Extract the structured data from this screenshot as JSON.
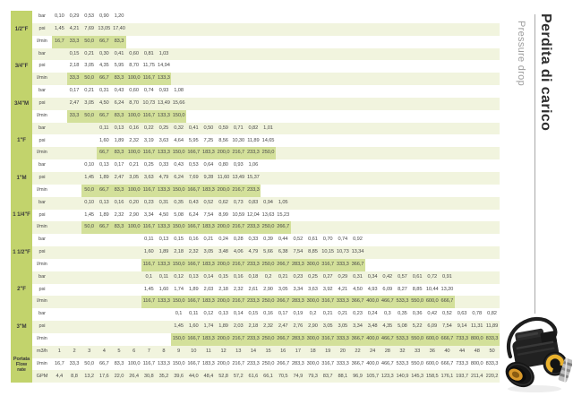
{
  "title": {
    "it": "Perdita di carico",
    "en": "Pressure drop"
  },
  "table": {
    "columns": 30,
    "units": {
      "bar": "bar",
      "psi": "psi",
      "lmin": "l/min",
      "m3h": "m3/h",
      "gpm": "GPM"
    },
    "groups": [
      {
        "size": "1/2\"F",
        "start": 1,
        "bar": [
          "0,10",
          "0,29",
          "0,53",
          "0,90",
          "1,20"
        ],
        "psi": [
          "1,45",
          "4,21",
          "7,69",
          "13,05",
          "17,40"
        ],
        "lmin": [
          "16,7",
          "33,3",
          "50,0",
          "66,7",
          "83,3"
        ]
      },
      {
        "size": "3/4\"F",
        "start": 2,
        "bar": [
          "0,15",
          "0,21",
          "0,30",
          "0,41",
          "0,60",
          "0,81",
          "1,03"
        ],
        "psi": [
          "2,18",
          "3,05",
          "4,35",
          "5,95",
          "8,70",
          "11,75",
          "14,94"
        ],
        "lmin": [
          "33,3",
          "50,0",
          "66,7",
          "83,3",
          "100,0",
          "116,7",
          "133,3"
        ]
      },
      {
        "size": "3/4\"M",
        "start": 2,
        "bar": [
          "0,17",
          "0,21",
          "0,31",
          "0,43",
          "0,60",
          "0,74",
          "0,93",
          "1,08"
        ],
        "psi": [
          "2,47",
          "3,05",
          "4,50",
          "6,24",
          "8,70",
          "10,73",
          "13,49",
          "15,66"
        ],
        "lmin": [
          "33,3",
          "50,0",
          "66,7",
          "83,3",
          "100,0",
          "116,7",
          "133,3",
          "150,0"
        ]
      },
      {
        "size": "1\"F",
        "start": 4,
        "bar": [
          "0,11",
          "0,13",
          "0,16",
          "0,22",
          "0,25",
          "0,32",
          "0,41",
          "0,50",
          "0,59",
          "0,71",
          "0,82",
          "1,01"
        ],
        "psi": [
          "1,60",
          "1,89",
          "2,32",
          "3,19",
          "3,63",
          "4,64",
          "5,95",
          "7,25",
          "8,56",
          "10,30",
          "11,89",
          "14,65"
        ],
        "lmin": [
          "66,7",
          "83,3",
          "100,0",
          "116,7",
          "133,3",
          "150,0",
          "166,7",
          "183,3",
          "200,0",
          "216,7",
          "233,3",
          "250,0"
        ]
      },
      {
        "size": "1\"M",
        "start": 3,
        "bar": [
          "0,10",
          "0,13",
          "0,17",
          "0,21",
          "0,25",
          "0,33",
          "0,43",
          "0,53",
          "0,64",
          "0,80",
          "0,93",
          "1,06"
        ],
        "psi": [
          "1,45",
          "1,89",
          "2,47",
          "3,05",
          "3,63",
          "4,79",
          "6,24",
          "7,69",
          "9,28",
          "11,60",
          "13,49",
          "15,37"
        ],
        "lmin": [
          "50,0",
          "66,7",
          "83,3",
          "100,0",
          "116,7",
          "133,3",
          "150,0",
          "166,7",
          "183,3",
          "200,0",
          "216,7",
          "233,3"
        ]
      },
      {
        "size": "1 1/4\"F",
        "start": 3,
        "bar": [
          "0,10",
          "0,13",
          "0,16",
          "0,20",
          "0,23",
          "0,31",
          "0,35",
          "0,43",
          "0,52",
          "0,62",
          "0,73",
          "0,83",
          "0,94",
          "1,05"
        ],
        "psi": [
          "1,45",
          "1,89",
          "2,32",
          "2,90",
          "3,34",
          "4,50",
          "5,08",
          "6,24",
          "7,54",
          "8,99",
          "10,59",
          "12,04",
          "13,63",
          "15,23"
        ],
        "lmin": [
          "50,0",
          "66,7",
          "83,3",
          "100,0",
          "116,7",
          "133,3",
          "150,0",
          "166,7",
          "183,3",
          "200,0",
          "216,7",
          "233,3",
          "250,0",
          "266,7"
        ]
      },
      {
        "size": "1 1/2\"F",
        "start": 7,
        "bar": [
          "0,11",
          "0,13",
          "0,15",
          "0,16",
          "0,21",
          "0,24",
          "0,28",
          "0,33",
          "0,39",
          "0,44",
          "0,52",
          "0,61",
          "0,70",
          "0,74",
          "0,92"
        ],
        "psi": [
          "1,60",
          "1,89",
          "2,18",
          "2,32",
          "3,05",
          "3,48",
          "4,06",
          "4,79",
          "5,66",
          "6,38",
          "7,54",
          "8,85",
          "10,15",
          "10,73",
          "13,34"
        ],
        "lmin": [
          "116,7",
          "133,3",
          "150,0",
          "166,7",
          "183,3",
          "200,0",
          "216,7",
          "233,3",
          "250,0",
          "266,7",
          "283,3",
          "300,0",
          "316,7",
          "333,3",
          "366,7"
        ]
      },
      {
        "size": "2\"F",
        "start": 7,
        "bar": [
          "0,1",
          "0,11",
          "0,12",
          "0,13",
          "0,14",
          "0,15",
          "0,16",
          "0,18",
          "0,2",
          "0,21",
          "0,23",
          "0,25",
          "0,27",
          "0,29",
          "0,31",
          "0,34",
          "0,42",
          "0,57",
          "0,61",
          "0,72",
          "0,91"
        ],
        "psi": [
          "1,45",
          "1,60",
          "1,74",
          "1,89",
          "2,03",
          "2,18",
          "2,32",
          "2,61",
          "2,90",
          "3,05",
          "3,34",
          "3,63",
          "3,92",
          "4,21",
          "4,50",
          "4,93",
          "6,09",
          "8,27",
          "8,85",
          "10,44",
          "13,20"
        ],
        "lmin": [
          "116,7",
          "133,3",
          "150,0",
          "166,7",
          "183,3",
          "200,0",
          "216,7",
          "233,3",
          "250,0",
          "266,7",
          "283,3",
          "300,0",
          "316,7",
          "333,3",
          "366,7",
          "400,0",
          "466,7",
          "533,3",
          "550,0",
          "600,0",
          "666,7"
        ]
      },
      {
        "size": "3\"M",
        "start": 9,
        "bar": [
          "0,1",
          "0,11",
          "0,12",
          "0,13",
          "0,14",
          "0,15",
          "0,16",
          "0,17",
          "0,19",
          "0,2",
          "0,21",
          "0,21",
          "0,23",
          "0,24",
          "0,3",
          "0,35",
          "0,36",
          "0,42",
          "0,52",
          "0,63",
          "0,78",
          "0,82"
        ],
        "psi": [
          "1,45",
          "1,60",
          "1,74",
          "1,89",
          "2,03",
          "2,18",
          "2,32",
          "2,47",
          "2,76",
          "2,90",
          "3,05",
          "3,05",
          "3,34",
          "3,48",
          "4,35",
          "5,08",
          "5,22",
          "6,09",
          "7,54",
          "9,14",
          "11,31",
          "11,89"
        ],
        "lmin": [
          "150,0",
          "166,7",
          "183,3",
          "200,0",
          "216,7",
          "233,3",
          "250,0",
          "266,7",
          "283,3",
          "300,0",
          "316,7",
          "333,3",
          "366,7",
          "400,0",
          "466,7",
          "533,3",
          "550,0",
          "600,0",
          "666,7",
          "733,3",
          "800,0",
          "833,3"
        ]
      }
    ],
    "flow": {
      "label_lines": [
        "Portata",
        "Flow",
        "rate"
      ],
      "m3h": [
        "1",
        "2",
        "3",
        "4",
        "5",
        "6",
        "7",
        "8",
        "9",
        "10",
        "11",
        "12",
        "13",
        "14",
        "15",
        "16",
        "17",
        "18",
        "19",
        "20",
        "22",
        "24",
        "28",
        "32",
        "33",
        "36",
        "40",
        "44",
        "48",
        "50"
      ],
      "lmin": [
        "16,7",
        "33,3",
        "50,0",
        "66,7",
        "83,3",
        "100,0",
        "116,7",
        "133,3",
        "150,0",
        "166,7",
        "183,3",
        "200,0",
        "216,7",
        "233,3",
        "250,0",
        "266,7",
        "283,3",
        "300,0",
        "316,7",
        "333,3",
        "366,7",
        "400,0",
        "466,7",
        "533,3",
        "550,0",
        "600,0",
        "666,7",
        "733,3",
        "800,0",
        "833,3"
      ],
      "gpm": [
        "4,4",
        "8,8",
        "13,2",
        "17,6",
        "22,0",
        "26,4",
        "30,8",
        "35,2",
        "39,6",
        "44,0",
        "48,4",
        "52,8",
        "57,2",
        "61,6",
        "66,1",
        "70,5",
        "74,9",
        "79,3",
        "83,7",
        "88,1",
        "96,9",
        "105,7",
        "123,3",
        "140,9",
        "145,3",
        "158,5",
        "176,1",
        "193,7",
        "211,4",
        "220,2"
      ]
    }
  },
  "colors": {
    "size_column": "#c2d36c",
    "row_stripe": "#f1f4de",
    "lmin_highlight": "#d3e09a",
    "title_dark": "#2e2e2e",
    "title_gray": "#9d9d9d",
    "pump_yellow": "#eab22e",
    "pump_amber": "#d9992b"
  }
}
